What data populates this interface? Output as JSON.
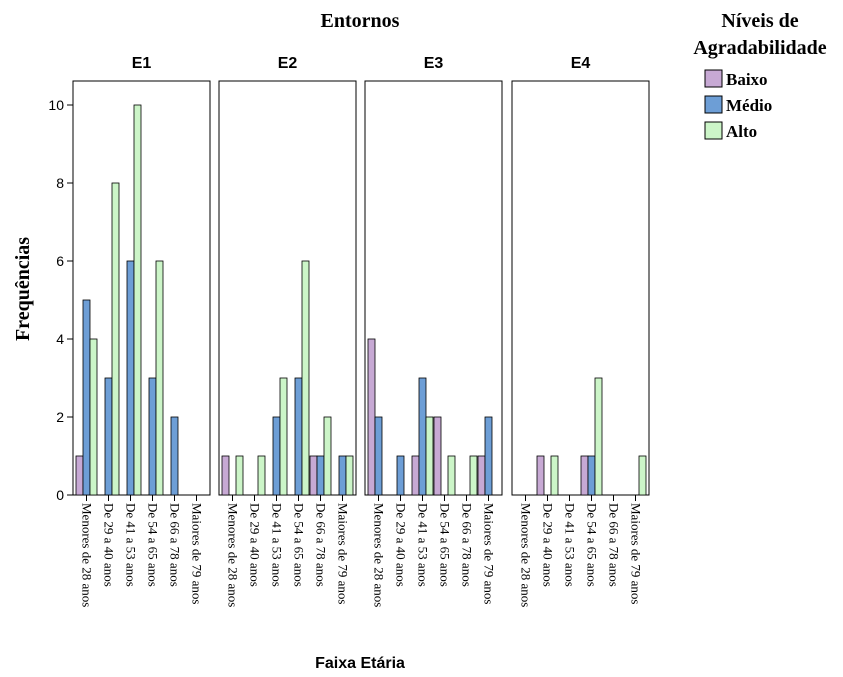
{
  "chart_data": {
    "type": "bar",
    "title": "Entornos",
    "xlabel": "Faixa Etária",
    "ylabel": "Frequências",
    "ylim": [
      0,
      11
    ],
    "yticks": [
      0,
      2,
      4,
      6,
      8,
      10
    ],
    "grid": false,
    "legend_position": "top-right",
    "legend_title_line1": "Níveis de",
    "legend_title_line2": "Agradabilidade",
    "categories": [
      "Menores de 28 anos",
      "De 29 a 40 anos",
      "De 41 a 53 anos",
      "De 54 a 65 anos",
      "De 66 a 78 anos",
      "Maiores de 79 anos"
    ],
    "series_colors": {
      "Baixo": "#c7a9d4",
      "Médio": "#6d9ed6",
      "Alto": "#ccf5c8"
    },
    "panels": [
      {
        "name": "E1",
        "series": [
          {
            "name": "Baixo",
            "values": [
              1,
              0,
              0,
              0,
              0,
              0
            ]
          },
          {
            "name": "Médio",
            "values": [
              5,
              3,
              6,
              3,
              2,
              0
            ]
          },
          {
            "name": "Alto",
            "values": [
              4,
              8,
              10,
              6,
              0,
              0
            ]
          }
        ]
      },
      {
        "name": "E2",
        "series": [
          {
            "name": "Baixo",
            "values": [
              1,
              0,
              0,
              0,
              1,
              0
            ]
          },
          {
            "name": "Médio",
            "values": [
              0,
              0,
              2,
              3,
              1,
              1
            ]
          },
          {
            "name": "Alto",
            "values": [
              1,
              1,
              3,
              6,
              2,
              1
            ]
          }
        ]
      },
      {
        "name": "E3",
        "series": [
          {
            "name": "Baixo",
            "values": [
              4,
              0,
              1,
              2,
              0,
              1
            ]
          },
          {
            "name": "Médio",
            "values": [
              2,
              1,
              3,
              0,
              0,
              2
            ]
          },
          {
            "name": "Alto",
            "values": [
              0,
              0,
              2,
              1,
              1,
              0
            ]
          }
        ]
      },
      {
        "name": "E4",
        "series": [
          {
            "name": "Baixo",
            "values": [
              0,
              1,
              0,
              1,
              0,
              0
            ]
          },
          {
            "name": "Médio",
            "values": [
              0,
              0,
              0,
              1,
              0,
              0
            ]
          },
          {
            "name": "Alto",
            "values": [
              0,
              1,
              0,
              3,
              0,
              1
            ]
          }
        ]
      }
    ]
  }
}
